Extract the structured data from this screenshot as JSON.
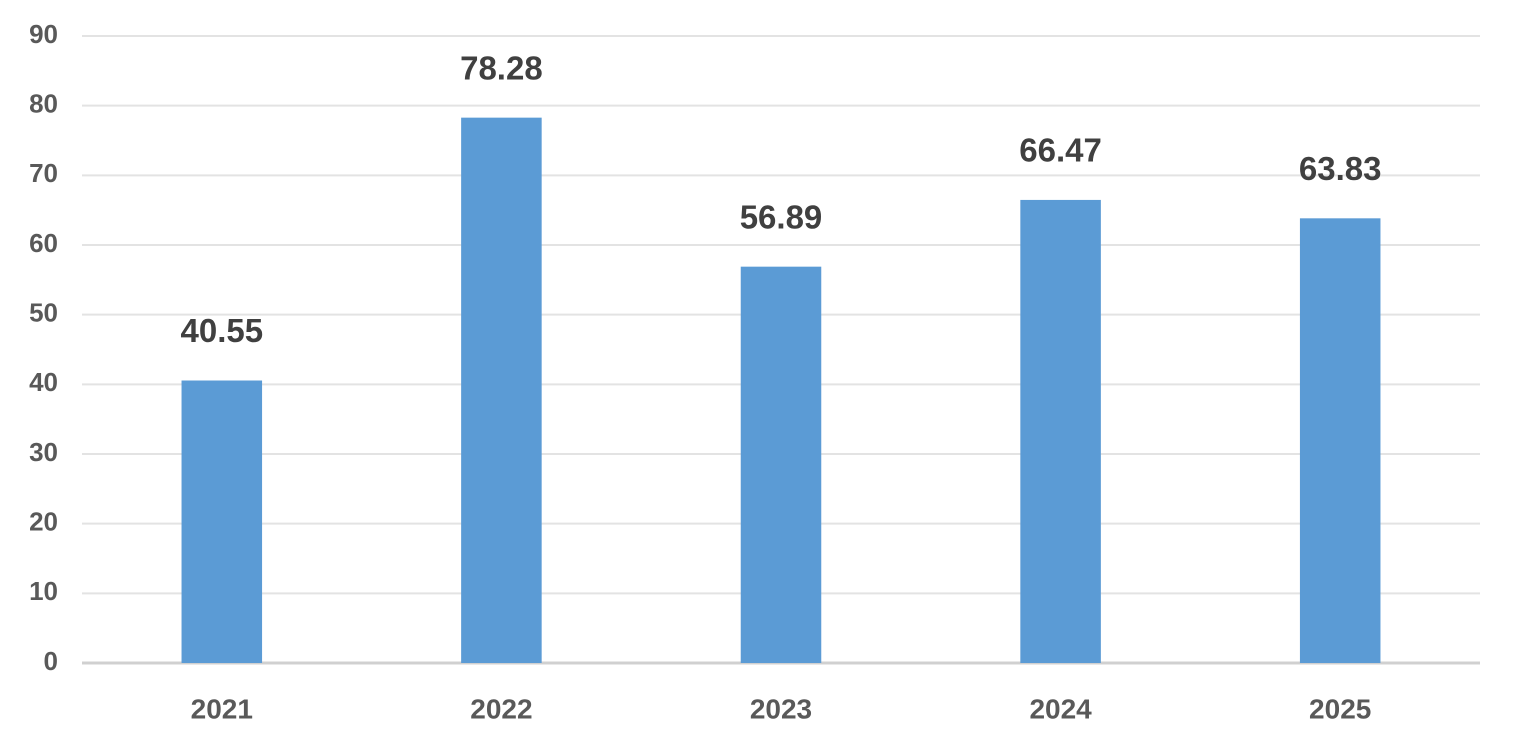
{
  "chart_data": {
    "type": "bar",
    "categories": [
      "2021",
      "2022",
      "2023",
      "2024",
      "2025"
    ],
    "values": [
      40.55,
      78.28,
      56.89,
      66.47,
      63.83
    ],
    "color": "#5b9bd5",
    "ylim": [
      0,
      90
    ],
    "yticks": [
      0,
      10,
      20,
      30,
      40,
      50,
      60,
      70,
      80,
      90
    ],
    "grid": true
  }
}
